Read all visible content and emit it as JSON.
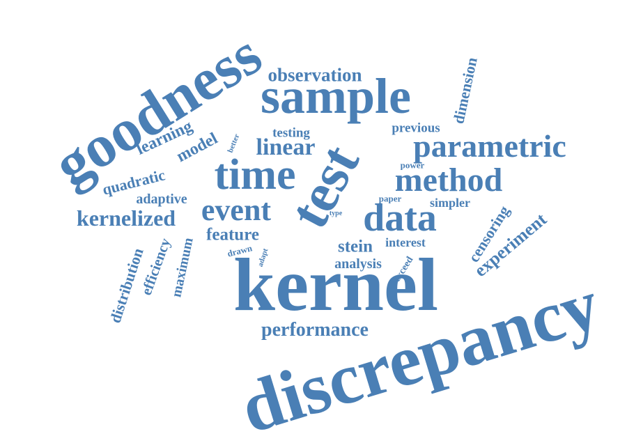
{
  "colors": {
    "word": "#4a7fb5",
    "background": "#ffffff"
  },
  "words": [
    {
      "text": "discrepancy"
    },
    {
      "text": "kernel"
    },
    {
      "text": "goodness"
    },
    {
      "text": "sample"
    },
    {
      "text": "test"
    },
    {
      "text": "time"
    },
    {
      "text": "parametric"
    },
    {
      "text": "data"
    },
    {
      "text": "method"
    },
    {
      "text": "event"
    },
    {
      "text": "linear"
    },
    {
      "text": "kernelized"
    },
    {
      "text": "performance"
    },
    {
      "text": "observation"
    },
    {
      "text": "experiment"
    },
    {
      "text": "censoring"
    },
    {
      "text": "dimension"
    },
    {
      "text": "model"
    },
    {
      "text": "learning"
    },
    {
      "text": "quadratic"
    },
    {
      "text": "adaptive"
    },
    {
      "text": "feature"
    },
    {
      "text": "stein"
    },
    {
      "text": "analysis"
    },
    {
      "text": "interest"
    },
    {
      "text": "previous"
    },
    {
      "text": "testing"
    },
    {
      "text": "distribution"
    },
    {
      "text": "efficiency"
    },
    {
      "text": "maximum"
    },
    {
      "text": "simpler"
    },
    {
      "text": "power"
    },
    {
      "text": "paper"
    },
    {
      "text": "exceed"
    },
    {
      "text": "drawn"
    },
    {
      "text": "adapt"
    },
    {
      "text": "better"
    },
    {
      "text": "type"
    }
  ]
}
